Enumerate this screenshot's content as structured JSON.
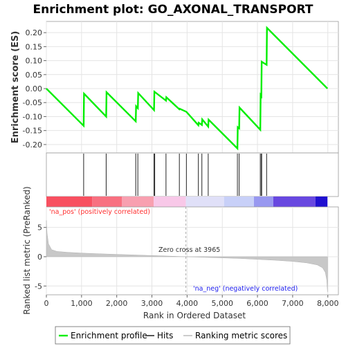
{
  "chart_data": {
    "type": "line",
    "title": "Enrichment plot: GO_AXONAL_TRANSPORT",
    "top_panel": {
      "ylabel": "Enrichment score (ES)",
      "ylim": [
        -0.23,
        0.24
      ],
      "yticks": [
        -0.2,
        -0.15,
        -0.1,
        -0.05,
        0.0,
        0.05,
        0.1,
        0.15,
        0.2
      ],
      "ytick_labels": [
        "-0.20",
        "-0.15",
        "-0.10",
        "-0.05",
        "0.00",
        "0.05",
        "0.10",
        "0.15",
        "0.20"
      ],
      "series": [
        {
          "name": "Enrichment profile",
          "color": "#00ff00",
          "x": [
            0,
            1060,
            1070,
            1700,
            1710,
            2540,
            2550,
            2600,
            2610,
            3060,
            3070,
            3400,
            3410,
            3780,
            3790,
            3980,
            4320,
            4330,
            4420,
            4430,
            4600,
            4610,
            5430,
            5440,
            5480,
            5490,
            6080,
            6090,
            6110,
            6120,
            6260,
            6270,
            7990
          ],
          "y": [
            0.0,
            -0.133,
            -0.018,
            -0.1,
            -0.013,
            -0.117,
            -0.063,
            -0.07,
            -0.016,
            -0.077,
            -0.011,
            -0.043,
            -0.031,
            -0.074,
            -0.072,
            -0.083,
            -0.131,
            -0.122,
            -0.13,
            -0.11,
            -0.136,
            -0.111,
            -0.214,
            -0.138,
            -0.142,
            -0.068,
            -0.147,
            -0.023,
            -0.027,
            0.096,
            0.085,
            0.217,
            0.0
          ]
        }
      ]
    },
    "hits": {
      "name": "Hits",
      "color": "#000000",
      "positions": [
        1060,
        1700,
        2540,
        2600,
        3060,
        3080,
        3400,
        3780,
        3980,
        4320,
        4420,
        4600,
        5430,
        5480,
        6080,
        6110,
        6120,
        6260
      ]
    },
    "color_bar": {
      "segments": [
        {
          "from": 0,
          "to": 1300,
          "color": "#f85060"
        },
        {
          "from": 1300,
          "to": 2150,
          "color": "#f87080"
        },
        {
          "from": 2150,
          "to": 3050,
          "color": "#f8a0b0"
        },
        {
          "from": 3050,
          "to": 3965,
          "color": "#f8c8e8"
        },
        {
          "from": 3965,
          "to": 5050,
          "color": "#e0e0f8"
        },
        {
          "from": 5050,
          "to": 5900,
          "color": "#c8d0f8"
        },
        {
          "from": 5900,
          "to": 6450,
          "color": "#9898f0"
        },
        {
          "from": 6450,
          "to": 7650,
          "color": "#6848e0"
        },
        {
          "from": 7650,
          "to": 7990,
          "color": "#2010d0"
        }
      ]
    },
    "bottom_panel": {
      "series_name": "Ranking metric scores",
      "color": "#c0c0c0",
      "ylabel": "Ranked list metric (PreRanked)",
      "ylim": [
        -6.5,
        8.5
      ],
      "yticks": [
        -5,
        0,
        5
      ],
      "ytick_labels": [
        "-5",
        "0",
        "5"
      ],
      "x": [
        0,
        20,
        60,
        150,
        300,
        600,
        1000,
        1500,
        2000,
        2500,
        3000,
        3500,
        3965,
        4500,
        5000,
        5500,
        6000,
        6500,
        7000,
        7400,
        7700,
        7850,
        7930,
        7970,
        7990
      ],
      "y": [
        6.2,
        4.0,
        2.2,
        1.2,
        0.9,
        0.75,
        0.62,
        0.5,
        0.4,
        0.3,
        0.2,
        0.1,
        0.0,
        -0.1,
        -0.2,
        -0.3,
        -0.45,
        -0.6,
        -0.8,
        -1.05,
        -1.4,
        -1.9,
        -2.7,
        -4.0,
        -6.0
      ]
    },
    "xlabel": "Rank in Ordered Dataset",
    "xlim": [
      0,
      8300
    ],
    "xticks": [
      0,
      1000,
      2000,
      3000,
      4000,
      5000,
      6000,
      7000,
      8000
    ],
    "xtick_labels": [
      "0",
      "1,000",
      "2,000",
      "3,000",
      "4,000",
      "5,000",
      "6,000",
      "7,000",
      "8,000"
    ],
    "zero_cross": 3965,
    "annotations": {
      "pos_label": "'na_pos' (positively correlated)",
      "neg_label": "'na_neg' (negatively correlated)",
      "zero_cross_label": "Zero cross at 3965"
    },
    "legend": {
      "items": [
        "Enrichment profile",
        "Hits",
        "Ranking metric scores"
      ]
    }
  }
}
